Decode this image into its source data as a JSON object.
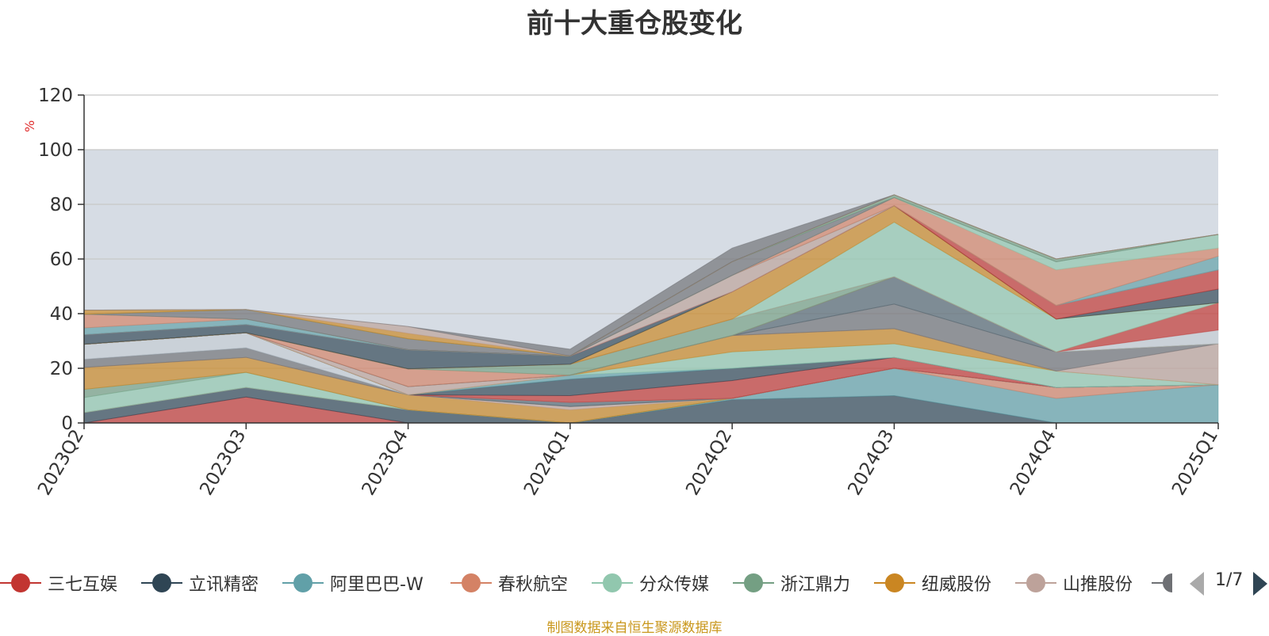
{
  "chart_data": {
    "type": "area",
    "title": "前十大重仓股变化",
    "ylabel": "%",
    "xlabel": "",
    "ylim": [
      0,
      120
    ],
    "yticks": [
      0,
      20,
      40,
      60,
      80,
      100,
      120
    ],
    "categories": [
      "2023Q2",
      "2023Q3",
      "2023Q4",
      "2024Q1",
      "2024Q2",
      "2024Q3",
      "2024Q4",
      "2025Q1"
    ],
    "grid": true,
    "stacked": true,
    "reference_band": [
      0,
      100
    ],
    "legend_position": "bottom",
    "series": [
      {
        "name": "三七互娱",
        "color": "#c23531",
        "values": [
          0,
          9.5,
          0,
          0,
          0,
          0,
          0,
          0
        ]
      },
      {
        "name": "立讯精密",
        "color": "#2f4554",
        "values": [
          3.8,
          3.5,
          4.8,
          0,
          8.5,
          10,
          0,
          0
        ]
      },
      {
        "name": "阿里巴巴-W",
        "color": "#61a0a8",
        "values": [
          0,
          0,
          0,
          0,
          0.5,
          10,
          9,
          14
        ]
      },
      {
        "name": "春秋航空",
        "color": "#d48265",
        "values": [
          0,
          0,
          0,
          0,
          0,
          0,
          4,
          0
        ]
      },
      {
        "name": "分众传媒",
        "color": "#91c7ae",
        "values": [
          5.5,
          5.5,
          0,
          0,
          0,
          0,
          0,
          0
        ]
      },
      {
        "name": "浙江鼎力",
        "color": "#749f83",
        "values": [
          3,
          0,
          0,
          0,
          0,
          0,
          0,
          0
        ]
      },
      {
        "name": "纽威股份",
        "color": "#ca8622",
        "values": [
          8,
          5.5,
          5.5,
          4.8,
          0,
          0,
          0,
          0
        ]
      },
      {
        "name": "山推股份",
        "color": "#bda29a",
        "values": [
          0,
          0,
          0,
          1.2,
          0,
          0,
          0,
          0
        ]
      },
      {
        "name": "",
        "color": "#6e7074",
        "values": [
          3,
          3.5,
          0,
          0,
          0,
          0,
          0,
          0
        ]
      },
      {
        "name": "",
        "color": "#546570",
        "values": [
          0,
          0,
          0,
          1.5,
          0,
          0,
          0,
          0
        ]
      },
      {
        "name": "",
        "color": "#c4ccd3",
        "values": [
          5.5,
          5.5,
          0,
          0,
          0,
          0,
          0,
          0
        ]
      },
      {
        "name": "",
        "color": "#c23531",
        "values": [
          0,
          0,
          0,
          2.5,
          6.5,
          4,
          0,
          0
        ]
      },
      {
        "name": "",
        "color": "#2f4554",
        "values": [
          0,
          0,
          0,
          6,
          4.5,
          0,
          0,
          0
        ]
      },
      {
        "name": "",
        "color": "#61a0a8",
        "values": [
          0,
          0,
          0,
          1.5,
          0,
          0,
          0,
          0
        ]
      },
      {
        "name": "",
        "color": "#91c7ae",
        "values": [
          0,
          0,
          0,
          0,
          6,
          5,
          6,
          0
        ]
      },
      {
        "name": "",
        "color": "#ca8622",
        "values": [
          0,
          0,
          0,
          0,
          6,
          5.5,
          0,
          0
        ]
      },
      {
        "name": "",
        "color": "#bda29a",
        "values": [
          0,
          0,
          3,
          0,
          0,
          0,
          0,
          15
        ]
      },
      {
        "name": "",
        "color": "#6e7074",
        "values": [
          0,
          0,
          0,
          0,
          0,
          9,
          7,
          0
        ]
      },
      {
        "name": "",
        "color": "#546570",
        "values": [
          0,
          0,
          0,
          0,
          0,
          10,
          0,
          0
        ]
      },
      {
        "name": "",
        "color": "#d48265",
        "values": [
          0,
          0,
          6.5,
          0,
          0,
          0,
          0,
          0
        ]
      },
      {
        "name": "",
        "color": "#749f83",
        "values": [
          0,
          0,
          0,
          4,
          6,
          0,
          0,
          0
        ]
      },
      {
        "name": "",
        "color": "#c4ccd3",
        "values": [
          0,
          0,
          0,
          0,
          0,
          0,
          0,
          5
        ]
      },
      {
        "name": "",
        "color": "#c23531",
        "values": [
          0,
          0,
          0,
          0,
          0,
          0,
          0,
          10
        ]
      },
      {
        "name": "",
        "color": "#91c7ae",
        "values": [
          0,
          0,
          0,
          0,
          0,
          20,
          12,
          0
        ]
      },
      {
        "name": "",
        "color": "#ca8622",
        "values": [
          0,
          0,
          0,
          0,
          10,
          6,
          0,
          0
        ]
      },
      {
        "name": "",
        "color": "#2f4554",
        "values": [
          3.5,
          3,
          7,
          3,
          0,
          0,
          0,
          5
        ]
      },
      {
        "name": "",
        "color": "#c23531",
        "values": [
          0,
          0,
          0,
          0,
          0,
          0,
          5,
          7
        ]
      },
      {
        "name": "",
        "color": "#bda29a",
        "values": [
          0,
          0,
          0,
          0,
          6,
          0,
          0,
          0
        ]
      },
      {
        "name": "",
        "color": "#61a0a8",
        "values": [
          2.5,
          2,
          0,
          0,
          0,
          0,
          0,
          5
        ]
      },
      {
        "name": "",
        "color": "#d48265",
        "values": [
          5,
          0,
          0,
          0,
          0,
          3,
          13,
          3
        ]
      },
      {
        "name": "",
        "color": "#91c7ae",
        "values": [
          0,
          0,
          0,
          0,
          0,
          0,
          3,
          5
        ]
      },
      {
        "name": "",
        "color": "#6e7074",
        "values": [
          0,
          3.5,
          4,
          0,
          5,
          0,
          0,
          0
        ]
      },
      {
        "name": "",
        "color": "#749f83",
        "values": [
          0,
          0,
          0,
          0,
          0,
          1,
          1,
          0
        ]
      },
      {
        "name": "",
        "color": "#ca8622",
        "values": [
          1.5,
          0,
          2,
          0,
          0,
          0,
          0,
          0
        ]
      },
      {
        "name": "",
        "color": "#bda29a",
        "values": [
          0,
          0,
          2.5,
          0,
          0,
          0,
          0,
          0
        ]
      },
      {
        "name": "",
        "color": "#6e7074",
        "values": [
          0,
          0,
          0,
          2.5,
          5,
          0,
          0,
          0
        ]
      }
    ]
  },
  "legend": {
    "visible_items": [
      "三七互娱",
      "立讯精密",
      "阿里巴巴-W",
      "春秋航空",
      "分众传媒",
      "浙江鼎力",
      "纽威股份",
      "山推股份"
    ],
    "page_indicator": "1/7"
  },
  "source_note": "制图数据来自恒生聚源数据库"
}
